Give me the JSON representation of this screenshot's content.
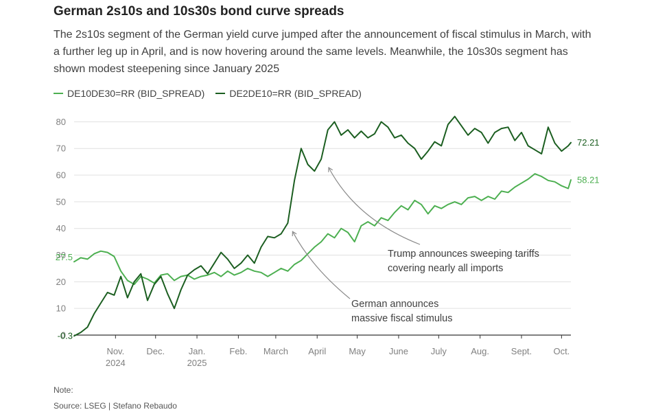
{
  "header": {
    "title": "German 2s10s and 10s30s bond curve spreads",
    "subtitle": "The 2s10s segment of the German yield curve jumped after the announcement of fiscal stimulus in March, with a further leg up in April, and is now hovering around the same levels. Meanwhile, the 10s30s segment has shown modest steepening since January 2025"
  },
  "footer": {
    "note": "Note:",
    "source": "Source: LSEG | Stefano Rebaudo"
  },
  "colors": {
    "de10de30": "#4caf50",
    "de2de10": "#1b5e20",
    "grid": "#e0e0e0",
    "arrow": "#8a8a8a"
  },
  "chart_data": {
    "type": "line",
    "title": "German 2s10s and 10s30s bond curve spreads",
    "xlabel": "",
    "ylabel": "",
    "ylim": [
      0,
      85
    ],
    "yticks": [
      0,
      10,
      20,
      30,
      40,
      50,
      60,
      70,
      80
    ],
    "grid": true,
    "legend_position": "top-left",
    "x_ticks": [
      {
        "date": "2024-11-01",
        "label": "Nov.",
        "sublabel": "2024"
      },
      {
        "date": "2024-12-01",
        "label": "Dec.",
        "sublabel": ""
      },
      {
        "date": "2025-01-01",
        "label": "Jan.",
        "sublabel": "2025"
      },
      {
        "date": "2025-02-01",
        "label": "Feb.",
        "sublabel": ""
      },
      {
        "date": "2025-03-01",
        "label": "March",
        "sublabel": ""
      },
      {
        "date": "2025-04-01",
        "label": "April",
        "sublabel": ""
      },
      {
        "date": "2025-05-01",
        "label": "May",
        "sublabel": ""
      },
      {
        "date": "2025-06-01",
        "label": "June",
        "sublabel": ""
      },
      {
        "date": "2025-07-01",
        "label": "July",
        "sublabel": ""
      },
      {
        "date": "2025-08-01",
        "label": "Aug.",
        "sublabel": ""
      },
      {
        "date": "2025-09-01",
        "label": "Sept.",
        "sublabel": ""
      },
      {
        "date": "2025-10-01",
        "label": "Oct.",
        "sublabel": ""
      }
    ],
    "series": [
      {
        "name": "DE10DE30=RR (BID_SPREAD)",
        "color": "#4caf50",
        "start_label": "27.5",
        "end_label": "58.21",
        "x": [
          "2024-10-01",
          "2024-10-06",
          "2024-10-11",
          "2024-10-16",
          "2024-10-21",
          "2024-10-26",
          "2024-10-31",
          "2024-11-05",
          "2024-11-10",
          "2024-11-15",
          "2024-11-20",
          "2024-11-25",
          "2024-11-30",
          "2024-12-05",
          "2024-12-10",
          "2024-12-15",
          "2024-12-20",
          "2024-12-25",
          "2024-12-30",
          "2025-01-04",
          "2025-01-09",
          "2025-01-14",
          "2025-01-19",
          "2025-01-24",
          "2025-01-29",
          "2025-02-03",
          "2025-02-08",
          "2025-02-13",
          "2025-02-18",
          "2025-02-23",
          "2025-02-28",
          "2025-03-05",
          "2025-03-10",
          "2025-03-15",
          "2025-03-20",
          "2025-03-25",
          "2025-03-30",
          "2025-04-04",
          "2025-04-09",
          "2025-04-14",
          "2025-04-19",
          "2025-04-24",
          "2025-04-29",
          "2025-05-04",
          "2025-05-09",
          "2025-05-14",
          "2025-05-19",
          "2025-05-24",
          "2025-05-29",
          "2025-06-03",
          "2025-06-08",
          "2025-06-13",
          "2025-06-18",
          "2025-06-23",
          "2025-06-28",
          "2025-07-03",
          "2025-07-08",
          "2025-07-13",
          "2025-07-18",
          "2025-07-23",
          "2025-07-28",
          "2025-08-02",
          "2025-08-07",
          "2025-08-12",
          "2025-08-17",
          "2025-08-22",
          "2025-08-27",
          "2025-09-01",
          "2025-09-06",
          "2025-09-11",
          "2025-09-16",
          "2025-09-21",
          "2025-09-26",
          "2025-10-01",
          "2025-10-06",
          "2025-10-08"
        ],
        "values": [
          27.5,
          29.0,
          28.5,
          30.5,
          31.5,
          31.0,
          29.5,
          24.0,
          20.5,
          19.0,
          22.0,
          21.0,
          19.5,
          22.5,
          23.0,
          20.5,
          22.0,
          22.5,
          21.0,
          22.0,
          22.5,
          23.5,
          22.0,
          24.0,
          22.5,
          23.5,
          25.0,
          24.0,
          23.5,
          22.0,
          23.5,
          25.0,
          24.0,
          26.5,
          28.0,
          30.5,
          33.0,
          35.0,
          38.0,
          36.5,
          40.0,
          38.5,
          35.0,
          41.0,
          42.5,
          41.0,
          44.0,
          43.0,
          46.0,
          48.5,
          47.0,
          50.5,
          49.0,
          45.5,
          48.5,
          47.5,
          49.0,
          50.0,
          49.0,
          51.5,
          52.0,
          50.5,
          52.0,
          51.0,
          54.0,
          53.5,
          55.5,
          57.0,
          58.5,
          60.5,
          59.5,
          58.0,
          57.5,
          56.0,
          55.0,
          58.21
        ]
      },
      {
        "name": "DE2DE10=RR (BID_SPREAD)",
        "color": "#1b5e20",
        "start_label": "-0.3",
        "end_label": "72.21",
        "x": [
          "2024-10-01",
          "2024-10-06",
          "2024-10-11",
          "2024-10-16",
          "2024-10-21",
          "2024-10-26",
          "2024-10-31",
          "2024-11-05",
          "2024-11-10",
          "2024-11-15",
          "2024-11-20",
          "2024-11-25",
          "2024-11-30",
          "2024-12-05",
          "2024-12-10",
          "2024-12-15",
          "2024-12-20",
          "2024-12-25",
          "2024-12-30",
          "2025-01-04",
          "2025-01-09",
          "2025-01-14",
          "2025-01-19",
          "2025-01-24",
          "2025-01-29",
          "2025-02-03",
          "2025-02-08",
          "2025-02-13",
          "2025-02-18",
          "2025-02-23",
          "2025-02-28",
          "2025-03-05",
          "2025-03-10",
          "2025-03-15",
          "2025-03-20",
          "2025-03-25",
          "2025-03-30",
          "2025-04-04",
          "2025-04-09",
          "2025-04-14",
          "2025-04-19",
          "2025-04-24",
          "2025-04-29",
          "2025-05-04",
          "2025-05-09",
          "2025-05-14",
          "2025-05-19",
          "2025-05-24",
          "2025-05-29",
          "2025-06-03",
          "2025-06-08",
          "2025-06-13",
          "2025-06-18",
          "2025-06-23",
          "2025-06-28",
          "2025-07-03",
          "2025-07-08",
          "2025-07-13",
          "2025-07-18",
          "2025-07-23",
          "2025-07-28",
          "2025-08-02",
          "2025-08-07",
          "2025-08-12",
          "2025-08-17",
          "2025-08-22",
          "2025-08-27",
          "2025-09-01",
          "2025-09-06",
          "2025-09-11",
          "2025-09-16",
          "2025-09-21",
          "2025-09-26",
          "2025-10-01",
          "2025-10-06",
          "2025-10-08"
        ],
        "values": [
          -0.3,
          1.0,
          3.0,
          8.0,
          12.0,
          16.0,
          15.0,
          22.0,
          14.0,
          20.0,
          23.0,
          13.0,
          19.0,
          22.0,
          15.5,
          10.0,
          17.0,
          22.5,
          24.5,
          26.0,
          23.0,
          27.0,
          31.0,
          28.5,
          25.0,
          27.0,
          30.0,
          27.0,
          33.0,
          37.0,
          36.5,
          38.0,
          42.0,
          58.0,
          70.0,
          64.0,
          61.5,
          66.0,
          77.0,
          80.0,
          75.0,
          77.0,
          74.0,
          76.5,
          74.0,
          75.5,
          80.0,
          78.0,
          74.0,
          75.0,
          72.0,
          70.0,
          66.0,
          69.0,
          72.5,
          71.0,
          79.0,
          82.0,
          78.5,
          75.0,
          77.5,
          76.0,
          72.0,
          76.0,
          77.5,
          78.0,
          73.0,
          76.0,
          71.0,
          69.5,
          68.0,
          78.0,
          72.0,
          69.0,
          71.0,
          72.21
        ]
      }
    ],
    "annotations": [
      {
        "lines": [
          "Trump announces sweeping tariffs",
          "covering nearly all imports"
        ],
        "target_date": "2025-04-09",
        "target_value": 64
      },
      {
        "lines": [
          "German announces",
          "massive fiscal stimulus"
        ],
        "target_date": "2025-03-13",
        "target_value": 40
      }
    ]
  }
}
